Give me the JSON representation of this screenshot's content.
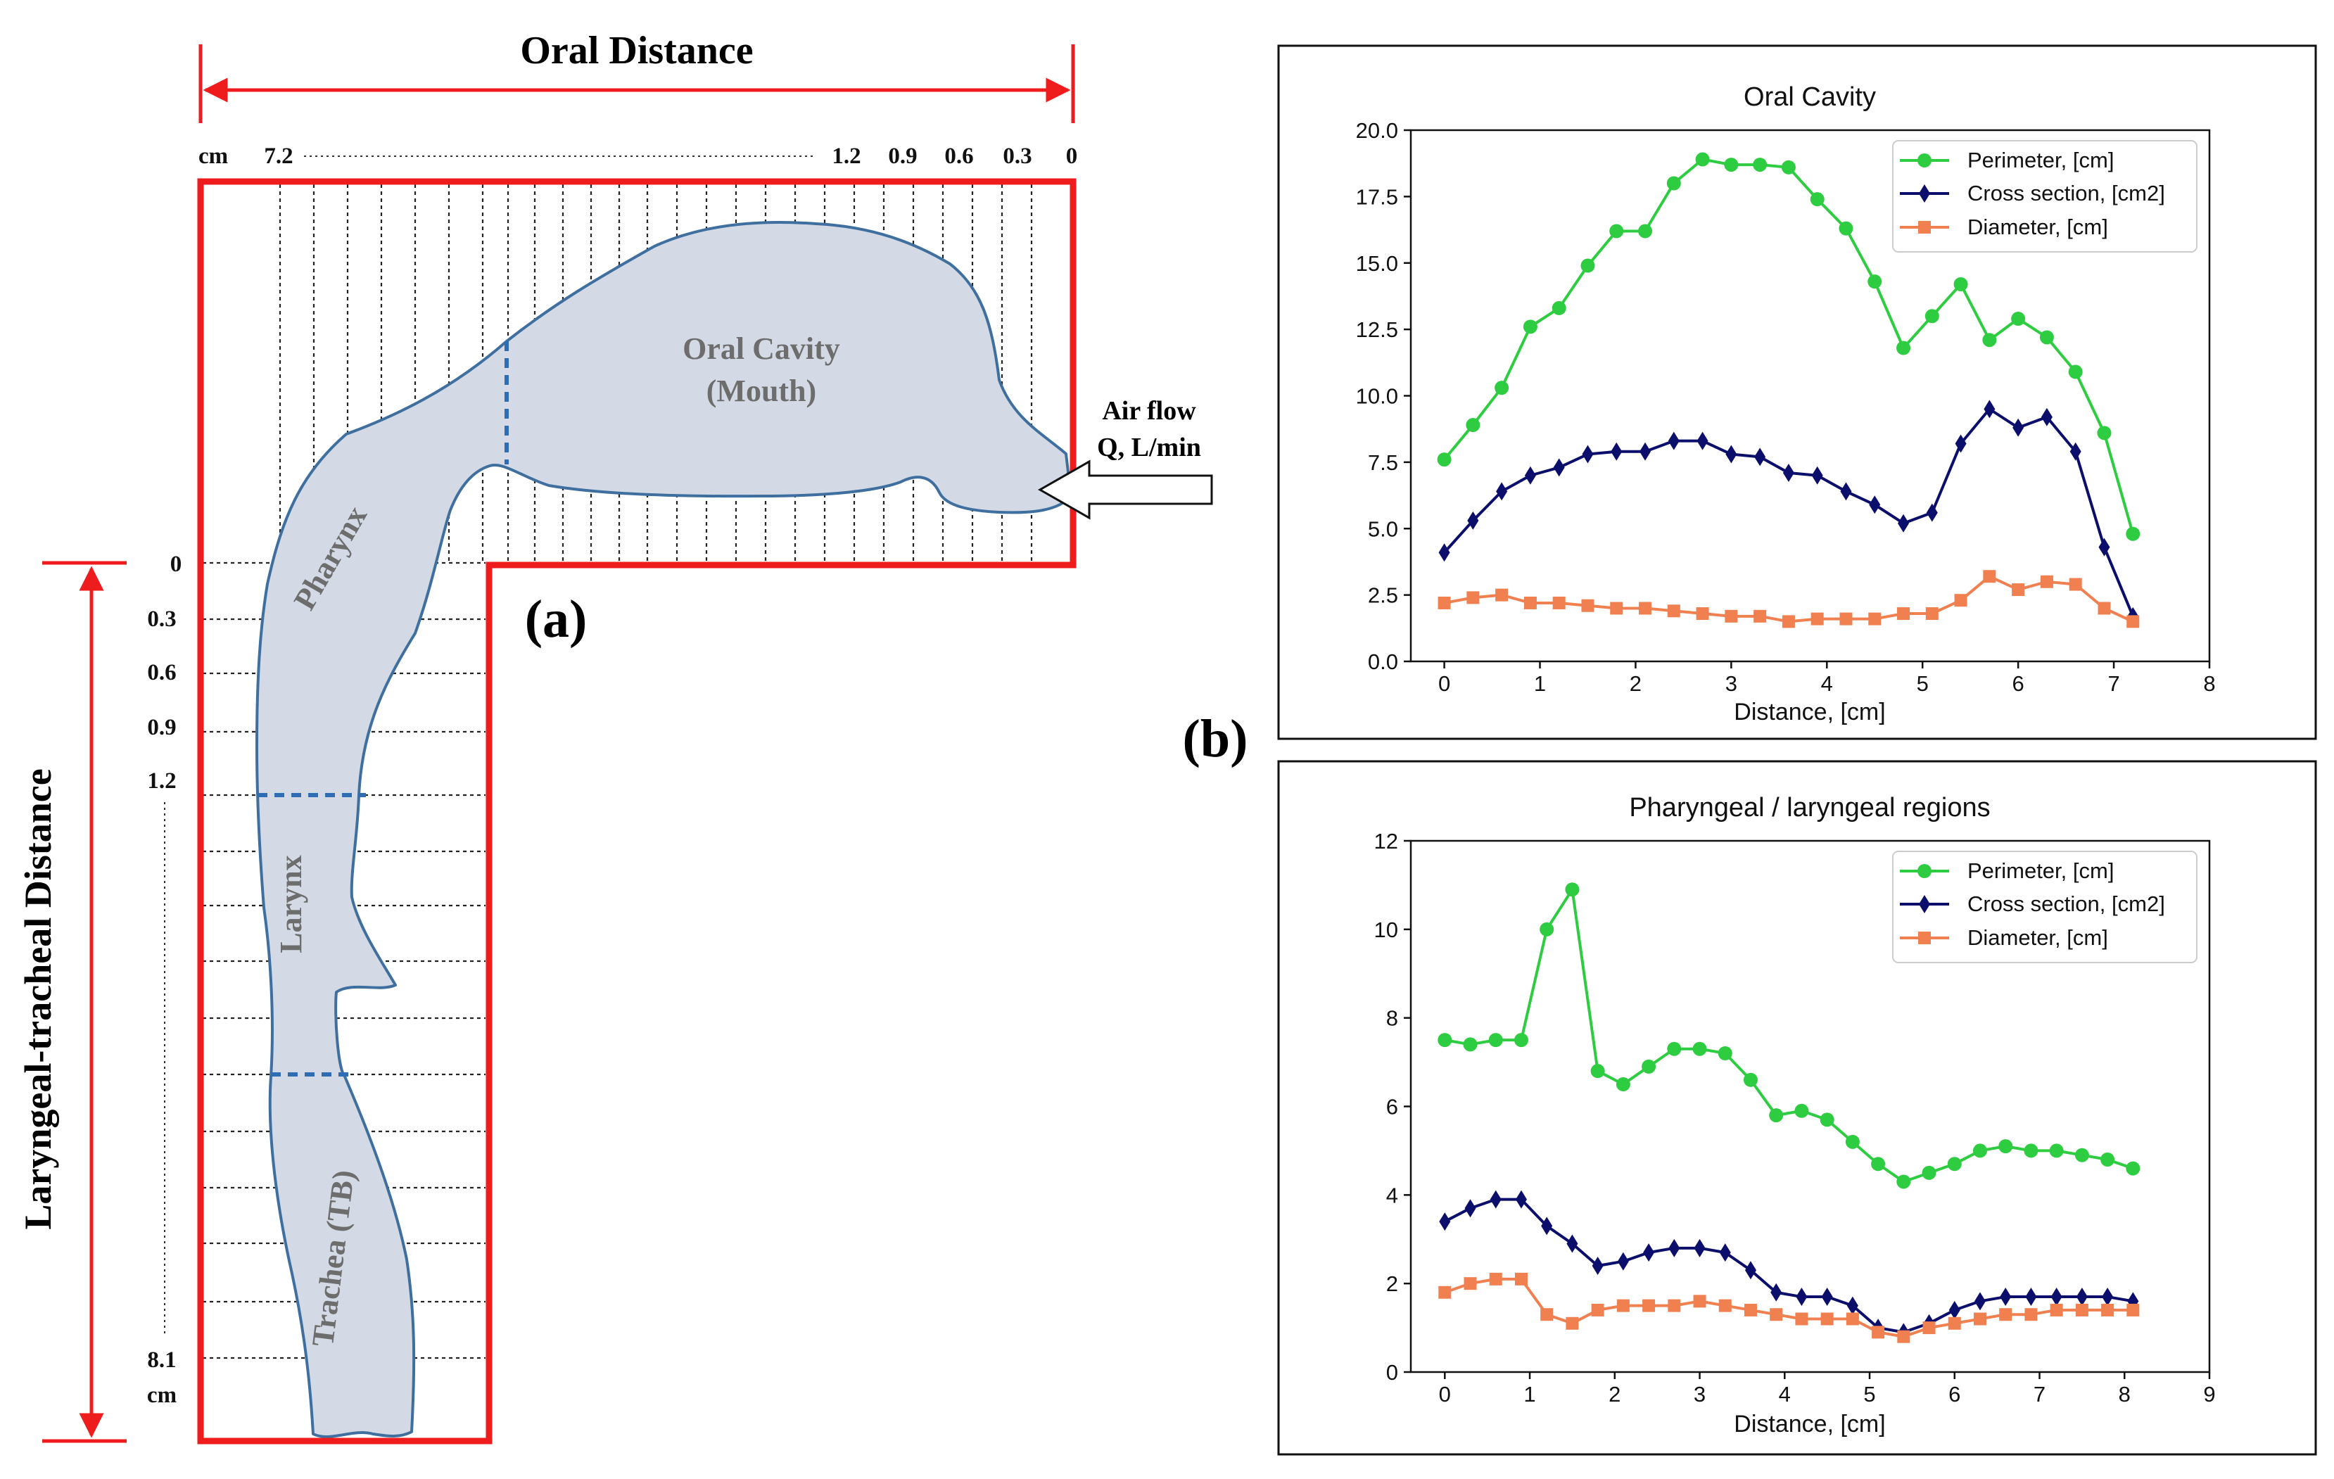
{
  "diagram": {
    "panel_label": "(a)",
    "oral_distance_title": "Oral Distance",
    "laryngeal_tracheal_title": "Laryngeal-tracheal Distance",
    "oral_scale": {
      "unit": "cm",
      "start": "7.2",
      "labels": [
        "1.2",
        "0.9",
        "0.6",
        "0.3",
        "0"
      ]
    },
    "tracheal_scale": {
      "labels": [
        "0",
        "0.3",
        "0.6",
        "0.9",
        "1.2"
      ],
      "end": "8.1",
      "unit": "cm"
    },
    "regions": {
      "oral_cavity": "Oral Cavity",
      "oral_cavity_sub": "(Mouth)",
      "pharynx": "Pharynx",
      "larynx": "Larynx",
      "trachea": "Trachea (TB)"
    },
    "airflow": {
      "line1": "Air flow",
      "line2": "Q, L/min"
    },
    "colors": {
      "boundary": "#ee1c1c",
      "airway_fill": "#d3dae5",
      "airway_stroke": "#3f6f9e",
      "dash": "#2e6db4"
    }
  },
  "panel_b_label": "(b)",
  "chart_data": [
    {
      "type": "line",
      "title": "Oral Cavity",
      "xlabel": "Distance, [cm]",
      "ylabel": "",
      "xlim": [
        -0.35,
        8
      ],
      "ylim": [
        0,
        20
      ],
      "xticks": [
        0,
        1,
        2,
        3,
        4,
        5,
        6,
        7,
        8
      ],
      "yticks": [
        0,
        2.5,
        5,
        7.5,
        10,
        12.5,
        15,
        17.5,
        20
      ],
      "ytick_labels": [
        "0.0",
        "2.5",
        "5.0",
        "7.5",
        "10.0",
        "12.5",
        "15.0",
        "17.5",
        "20.0"
      ],
      "x": [
        0,
        0.3,
        0.6,
        0.9,
        1.2,
        1.5,
        1.8,
        2.1,
        2.4,
        2.7,
        3.0,
        3.3,
        3.6,
        3.9,
        4.2,
        4.5,
        4.8,
        5.1,
        5.4,
        5.7,
        6.0,
        6.3,
        6.6,
        6.9,
        7.2
      ],
      "legend_position": "top-right",
      "series": [
        {
          "name": "Perimeter, [cm]",
          "color": "#2ecc40",
          "marker": "circle",
          "values": [
            7.6,
            8.9,
            10.3,
            12.6,
            13.3,
            14.9,
            16.2,
            16.2,
            18.0,
            18.9,
            18.7,
            18.7,
            18.6,
            17.4,
            16.3,
            14.3,
            11.8,
            13.0,
            14.2,
            12.1,
            12.9,
            12.2,
            10.9,
            8.6,
            4.8
          ]
        },
        {
          "name": "Cross section, [cm2]",
          "color": "#0b0f6b",
          "marker": "diamond",
          "values": [
            4.1,
            5.3,
            6.4,
            7.0,
            7.3,
            7.8,
            7.9,
            7.9,
            8.3,
            8.3,
            7.8,
            7.7,
            7.1,
            7.0,
            6.4,
            5.9,
            5.2,
            5.6,
            8.2,
            9.5,
            8.8,
            9.2,
            7.9,
            4.3,
            1.7
          ]
        },
        {
          "name": "Diameter, [cm]",
          "color": "#f08050",
          "marker": "square",
          "values": [
            2.2,
            2.4,
            2.5,
            2.2,
            2.2,
            2.1,
            2.0,
            2.0,
            1.9,
            1.8,
            1.7,
            1.7,
            1.5,
            1.6,
            1.6,
            1.6,
            1.8,
            1.8,
            2.3,
            3.2,
            2.7,
            3.0,
            2.9,
            2.0,
            1.5
          ]
        }
      ]
    },
    {
      "type": "line",
      "title": "Pharyngeal / laryngeal regions",
      "xlabel": "Distance, [cm]",
      "ylabel": "",
      "xlim": [
        -0.4,
        9
      ],
      "ylim": [
        0,
        12
      ],
      "xticks": [
        0,
        1,
        2,
        3,
        4,
        5,
        6,
        7,
        8,
        9
      ],
      "yticks": [
        0,
        2,
        4,
        6,
        8,
        10,
        12
      ],
      "ytick_labels": [
        "0",
        "2",
        "4",
        "6",
        "8",
        "10",
        "12"
      ],
      "x": [
        0,
        0.3,
        0.6,
        0.9,
        1.2,
        1.5,
        1.8,
        2.1,
        2.4,
        2.7,
        3.0,
        3.3,
        3.6,
        3.9,
        4.2,
        4.5,
        4.8,
        5.1,
        5.4,
        5.7,
        6.0,
        6.3,
        6.6,
        6.9,
        7.2,
        7.5,
        7.8,
        8.1
      ],
      "legend_position": "top-right",
      "series": [
        {
          "name": "Perimeter, [cm]",
          "color": "#2ecc40",
          "marker": "circle",
          "values": [
            7.5,
            7.4,
            7.5,
            7.5,
            10.0,
            10.9,
            6.8,
            6.5,
            6.9,
            7.3,
            7.3,
            7.2,
            6.6,
            5.8,
            5.9,
            5.7,
            5.2,
            4.7,
            4.3,
            4.5,
            4.7,
            5.0,
            5.1,
            5.0,
            5.0,
            4.9,
            4.8,
            4.6
          ]
        },
        {
          "name": "Cross section, [cm2]",
          "color": "#0b0f6b",
          "marker": "diamond",
          "values": [
            3.4,
            3.7,
            3.9,
            3.9,
            3.3,
            2.9,
            2.4,
            2.5,
            2.7,
            2.8,
            2.8,
            2.7,
            2.3,
            1.8,
            1.7,
            1.7,
            1.5,
            1.0,
            0.9,
            1.1,
            1.4,
            1.6,
            1.7,
            1.7,
            1.7,
            1.7,
            1.7,
            1.6
          ]
        },
        {
          "name": "Diameter, [cm]",
          "color": "#f08050",
          "marker": "square",
          "values": [
            1.8,
            2.0,
            2.1,
            2.1,
            1.3,
            1.1,
            1.4,
            1.5,
            1.5,
            1.5,
            1.6,
            1.5,
            1.4,
            1.3,
            1.2,
            1.2,
            1.2,
            0.9,
            0.8,
            1.0,
            1.1,
            1.2,
            1.3,
            1.3,
            1.4,
            1.4,
            1.4,
            1.4
          ]
        }
      ]
    }
  ]
}
